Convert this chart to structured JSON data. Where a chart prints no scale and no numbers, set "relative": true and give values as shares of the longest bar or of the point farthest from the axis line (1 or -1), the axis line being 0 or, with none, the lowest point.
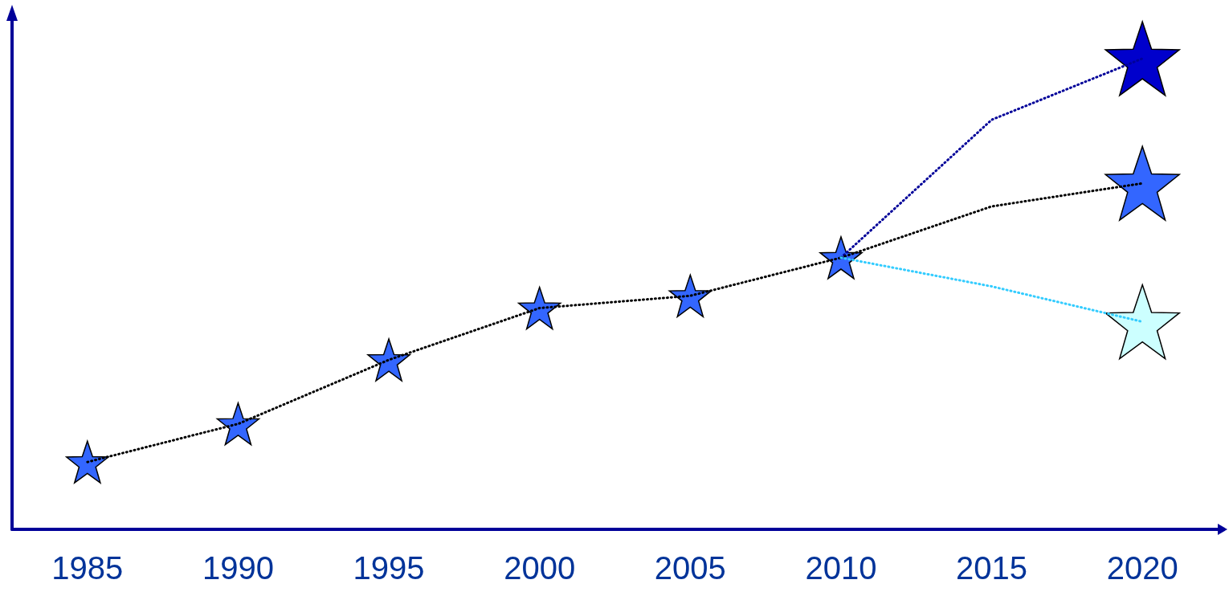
{
  "chart_data": {
    "type": "line",
    "relative": true,
    "categories": [
      "1985",
      "1990",
      "1995",
      "2000",
      "2005",
      "2010",
      "2015",
      "2020"
    ],
    "series": [
      {
        "color": "#000000",
        "line_style": "dotted",
        "marker": "none",
        "values": [
          0.143,
          0.224,
          0.36,
          0.47,
          0.496,
          0.577,
          null,
          null
        ]
      },
      {
        "color": "#000099",
        "line_style": "dotted",
        "marker": "none",
        "values": [
          null,
          null,
          null,
          null,
          null,
          0.577,
          0.87,
          1.0
        ]
      },
      {
        "color": "#000000",
        "line_style": "dotted",
        "marker": "none",
        "values": [
          null,
          null,
          null,
          null,
          null,
          0.577,
          0.686,
          0.735
        ]
      },
      {
        "color": "#33ccff",
        "line_style": "dotted",
        "marker": "none",
        "values": [
          null,
          null,
          null,
          null,
          null,
          0.577,
          0.516,
          0.441
        ]
      },
      {
        "type": "scatter",
        "color": "#3366ff",
        "marker": "star",
        "values": [
          0.143,
          0.224,
          0.36,
          0.47,
          0.496,
          0.577,
          null,
          null
        ]
      },
      {
        "type": "scatter",
        "color": "#0000cc",
        "marker": "star",
        "values": [
          null,
          null,
          null,
          null,
          null,
          null,
          null,
          1.0
        ]
      },
      {
        "type": "scatter",
        "color": "#3366ff",
        "marker": "star",
        "values": [
          null,
          null,
          null,
          null,
          null,
          null,
          null,
          0.735
        ]
      },
      {
        "type": "scatter",
        "color": "#ccffff",
        "marker": "star",
        "values": [
          null,
          null,
          null,
          null,
          null,
          null,
          null,
          0.441
        ]
      }
    ],
    "grid": false
  }
}
